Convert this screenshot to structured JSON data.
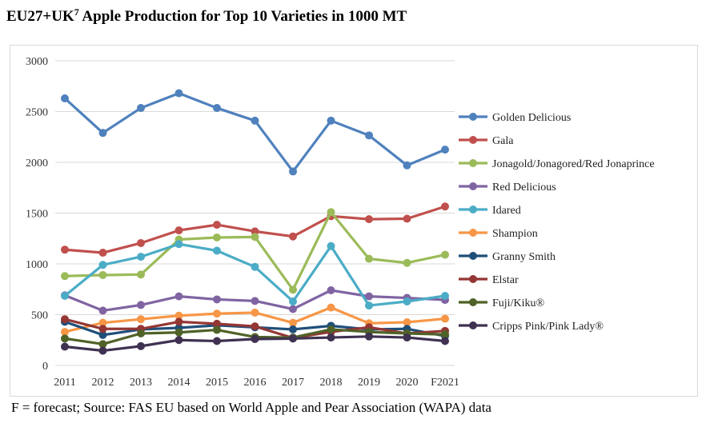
{
  "title": {
    "main": "EU27+UK",
    "superscript": "7",
    "rest": " Apple Production for Top 10 Varieties in 1000 MT"
  },
  "footnote": "F = forecast; Source: FAS EU based on World Apple and Pear Association (WAPA) data",
  "chart_data": {
    "type": "line",
    "title": "EU27+UK7 Apple Production for Top 10 Varieties in 1000 MT",
    "xlabel": "",
    "ylabel": "",
    "ylim": [
      0,
      3000
    ],
    "yticks": [
      0,
      500,
      1000,
      1500,
      2000,
      2500,
      3000
    ],
    "grid": "horizontal",
    "legend_position": "right",
    "categories": [
      "2011",
      "2012",
      "2013",
      "2014",
      "2015",
      "2016",
      "2017",
      "2018",
      "2019",
      "2020",
      "F2021"
    ],
    "series": [
      {
        "name": "Golden Delicious",
        "color": "#4f81bd",
        "values": [
          2630,
          2290,
          2535,
          2680,
          2535,
          2410,
          1910,
          2410,
          2265,
          1970,
          2125
        ]
      },
      {
        "name": "Gala",
        "color": "#c0504d",
        "values": [
          1140,
          1110,
          1205,
          1330,
          1385,
          1320,
          1270,
          1470,
          1440,
          1445,
          1565
        ]
      },
      {
        "name": "Jonagold/Jonagored/Red Jonaprince",
        "color": "#9bbb59",
        "values": [
          880,
          890,
          895,
          1240,
          1260,
          1265,
          745,
          1510,
          1050,
          1010,
          1090
        ]
      },
      {
        "name": "Red Delicious",
        "color": "#8064a2",
        "values": [
          690,
          540,
          595,
          680,
          650,
          635,
          555,
          740,
          680,
          665,
          645
        ]
      },
      {
        "name": "Idared",
        "color": "#4bacc6",
        "values": [
          685,
          990,
          1070,
          1195,
          1130,
          970,
          630,
          1175,
          590,
          630,
          685
        ]
      },
      {
        "name": "Shampion",
        "color": "#f79646",
        "values": [
          330,
          420,
          455,
          490,
          510,
          520,
          420,
          570,
          415,
          425,
          460
        ]
      },
      {
        "name": "Granny Smith",
        "color": "#1f4e79",
        "values": [
          430,
          300,
          355,
          370,
          395,
          375,
          355,
          390,
          355,
          360,
          290
        ]
      },
      {
        "name": "Elstar",
        "color": "#943634",
        "values": [
          455,
          360,
          360,
          430,
          410,
          385,
          270,
          330,
          375,
          315,
          340
        ]
      },
      {
        "name": "Fuji/Kiku®",
        "color": "#4f6228",
        "values": [
          265,
          210,
          315,
          325,
          350,
          280,
          275,
          355,
          330,
          315,
          305
        ]
      },
      {
        "name": "Cripps Pink/Pink Lady®",
        "color": "#3f3151",
        "values": [
          185,
          145,
          190,
          250,
          240,
          260,
          265,
          275,
          285,
          275,
          240
        ]
      }
    ]
  }
}
